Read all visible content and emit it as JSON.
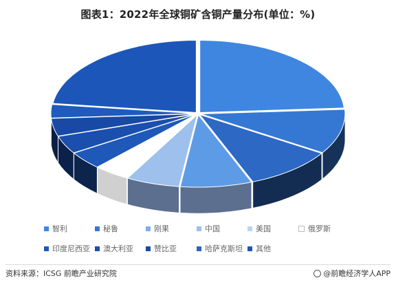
{
  "title": "图表1：2022年全球铜矿含铜产量分布(单位：%)",
  "colors": {
    "slice_light": "#3E86E0",
    "slice_dark": "#1A4FAE",
    "slice_pale": "#9DC0EC",
    "slice_white": "#FFFFFF",
    "side_dark": "#21365F",
    "side_gray": "#5C6F8F"
  },
  "chart_data": {
    "type": "pie",
    "style": "3d-exploded",
    "categories": [
      "智利",
      "秘鲁",
      "刚果",
      "中国",
      "美国",
      "俄罗斯",
      "印度尼西亚",
      "澳大利亚",
      "赞比亚",
      "哈萨克斯坦",
      "其他"
    ],
    "values": [
      24,
      10,
      10,
      8,
      6,
      4,
      4,
      4,
      4,
      3,
      23
    ],
    "slice_colors": [
      "#3E86E0",
      "#3478D4",
      "#2C68C4",
      "#5E9BE6",
      "#9DC0EC",
      "#FFFFFF",
      "#1E58B8",
      "#1A4FAE",
      "#184AA5",
      "#1F5BBE",
      "#1C56B8"
    ],
    "legend_position": "bottom",
    "legend": [
      {
        "label": "智利",
        "color": "#3E86E0"
      },
      {
        "label": "秘鲁",
        "color": "#3478D4"
      },
      {
        "label": "刚果",
        "color": "#7FAEEA"
      },
      {
        "label": "中国",
        "color": "#9DC0EC"
      },
      {
        "label": "美国",
        "color": "#B9D3F2"
      },
      {
        "label": "俄罗斯",
        "color": "#FFFFFF"
      },
      {
        "label": "印度尼西亚",
        "color": "#1E58B8"
      },
      {
        "label": "澳大利亚",
        "color": "#1A4FAE"
      },
      {
        "label": "赞比亚",
        "color": "#184AA5"
      },
      {
        "label": "哈萨克斯坦",
        "color": "#2A63C4"
      },
      {
        "label": "其他",
        "color": "#1C56B8"
      }
    ]
  },
  "footer": {
    "source": "资料来源：ICSG 前瞻产业研究院",
    "brand": "@前瞻经济学人APP"
  }
}
